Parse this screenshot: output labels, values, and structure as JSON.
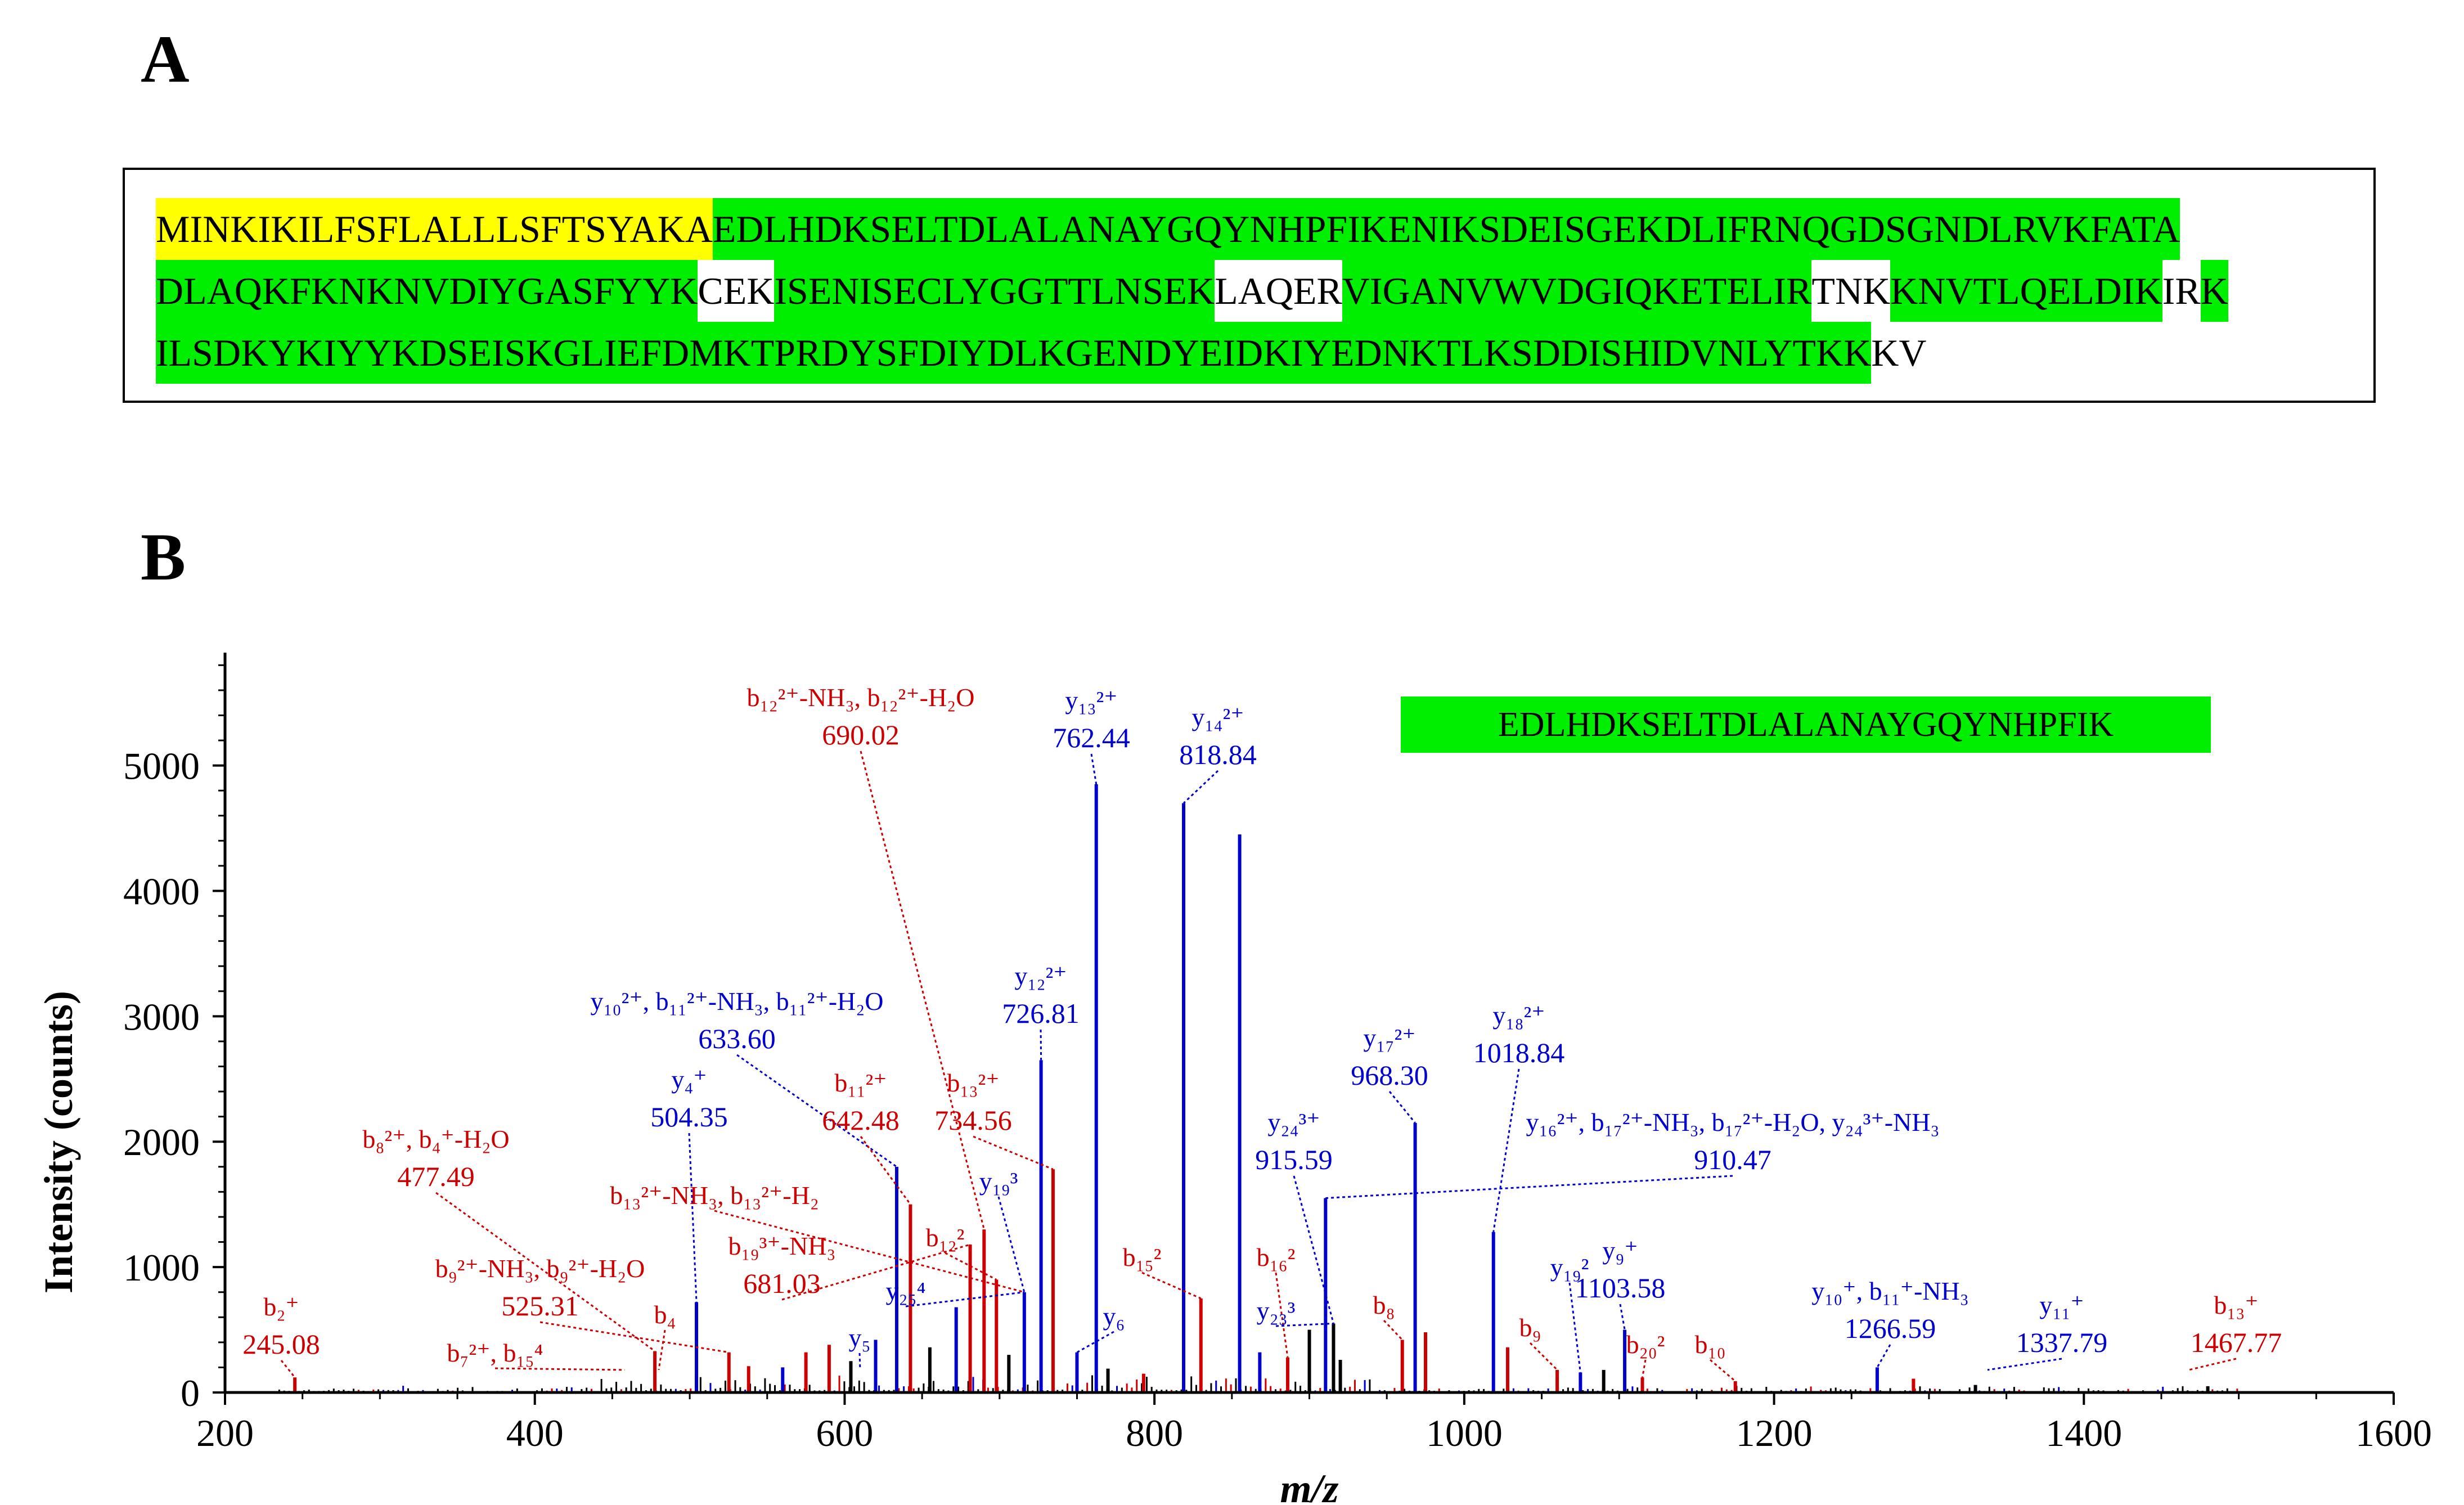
{
  "panels": {
    "a": "A",
    "b": "B"
  },
  "sequence": {
    "lines": [
      [
        {
          "text": "MINKIKILFSFLALLLSFTSYAKA",
          "kind": "sig"
        },
        {
          "text": "EDLHDKSELTDLALANAYGQYNHPFIKENIKSDEISGEKDLIFRNQGDSGNDLRVKFATA",
          "kind": "cov"
        }
      ],
      [
        {
          "text": "DLAQKFKNKNVDIYGASFYYK",
          "kind": "cov"
        },
        {
          "text": "CEK",
          "kind": "plain"
        },
        {
          "text": "ISENISECLYGGTTLNSEK",
          "kind": "cov"
        },
        {
          "text": "LAQER",
          "kind": "plain"
        },
        {
          "text": "VIGANVWVDGIQKETELIR",
          "kind": "cov"
        },
        {
          "text": "TNK",
          "kind": "plain"
        },
        {
          "text": "KNVTLQELDIK",
          "kind": "cov"
        },
        {
          "text": "IR",
          "kind": "plain"
        },
        {
          "text": "K",
          "kind": "cov"
        }
      ],
      [
        {
          "text": "ILSDKYKIYYKDSEISKGLIEFDMKTPRDYSFDIYDLKGENDYEIDKIYEDNKTLKSDDISHIDVNLYTKK",
          "kind": "cov"
        },
        {
          "text": "KV",
          "kind": "plain"
        }
      ]
    ]
  },
  "chart_data": {
    "type": "bar",
    "title": "",
    "peptide": "EDLHDKSELTDLALANAYGQYNHPFIK",
    "xlabel": "m/z",
    "ylabel": "Intensity (counts)",
    "xlim": [
      200,
      1600
    ],
    "ylim": [
      0,
      5900
    ],
    "xticks": [
      200,
      400,
      600,
      800,
      1000,
      1200,
      1400,
      1600
    ],
    "yticks": [
      0,
      1000,
      2000,
      3000,
      4000,
      5000
    ],
    "colors": {
      "b": "#cc0000",
      "y": "#0000cc",
      "other": "#000000",
      "accent": "#00ee00",
      "signal": "#ffff00"
    },
    "peaks": [
      {
        "mz": 245.08,
        "i": 120,
        "ion": "b"
      },
      {
        "mz": 477.49,
        "i": 330,
        "ion": "b"
      },
      {
        "mz": 504.35,
        "i": 720,
        "ion": "y"
      },
      {
        "mz": 525.31,
        "i": 320,
        "ion": "b"
      },
      {
        "mz": 633.6,
        "i": 1800,
        "ion": "y"
      },
      {
        "mz": 642.48,
        "i": 1500,
        "ion": "b"
      },
      {
        "mz": 681.03,
        "i": 1180,
        "ion": "b"
      },
      {
        "mz": 690.02,
        "i": 1300,
        "ion": "b"
      },
      {
        "mz": 698,
        "i": 900,
        "ion": "b"
      },
      {
        "mz": 716,
        "i": 800,
        "ion": "y"
      },
      {
        "mz": 726.81,
        "i": 2650,
        "ion": "y"
      },
      {
        "mz": 734.56,
        "i": 1780,
        "ion": "b"
      },
      {
        "mz": 762.44,
        "i": 4850,
        "ion": "y"
      },
      {
        "mz": 818.84,
        "i": 4700,
        "ion": "y"
      },
      {
        "mz": 830,
        "i": 750,
        "ion": "b"
      },
      {
        "mz": 855,
        "i": 4450,
        "ion": "y"
      },
      {
        "mz": 910.47,
        "i": 1550,
        "ion": "y"
      },
      {
        "mz": 915.59,
        "i": 550,
        "ion": "other"
      },
      {
        "mz": 968.3,
        "i": 2150,
        "ion": "y"
      },
      {
        "mz": 1018.84,
        "i": 1280,
        "ion": "y"
      },
      {
        "mz": 1103.58,
        "i": 500,
        "ion": "y"
      },
      {
        "mz": 1266.59,
        "i": 200,
        "ion": "y"
      },
      {
        "mz": 960,
        "i": 420,
        "ion": "b"
      },
      {
        "mz": 975,
        "i": 480,
        "ion": "b"
      },
      {
        "mz": 1075,
        "i": 160,
        "ion": "y"
      },
      {
        "mz": 1060,
        "i": 180,
        "ion": "b"
      },
      {
        "mz": 1115,
        "i": 120,
        "ion": "b"
      },
      {
        "mz": 1175,
        "i": 90,
        "ion": "b"
      },
      {
        "mz": 868,
        "i": 320,
        "ion": "y"
      },
      {
        "mz": 886,
        "i": 280,
        "ion": "b"
      },
      {
        "mz": 900,
        "i": 500,
        "ion": "other"
      },
      {
        "mz": 620,
        "i": 420,
        "ion": "y"
      },
      {
        "mz": 672,
        "i": 680,
        "ion": "y"
      },
      {
        "mz": 750,
        "i": 320,
        "ion": "y"
      },
      {
        "mz": 538,
        "i": 210,
        "ion": "b"
      },
      {
        "mz": 560,
        "i": 200,
        "ion": "y"
      },
      {
        "mz": 575,
        "i": 320,
        "ion": "b"
      },
      {
        "mz": 590,
        "i": 380,
        "ion": "b"
      },
      {
        "mz": 604,
        "i": 250,
        "ion": "other"
      },
      {
        "mz": 655,
        "i": 360,
        "ion": "other"
      },
      {
        "mz": 706,
        "i": 300,
        "ion": "other"
      },
      {
        "mz": 770,
        "i": 190,
        "ion": "other"
      },
      {
        "mz": 793,
        "i": 150,
        "ion": "b"
      },
      {
        "mz": 920,
        "i": 260,
        "ion": "other"
      },
      {
        "mz": 1028,
        "i": 360,
        "ion": "b"
      },
      {
        "mz": 1090,
        "i": 180,
        "ion": "other"
      },
      {
        "mz": 1290,
        "i": 110,
        "ion": "b"
      },
      {
        "mz": 1330,
        "i": 60,
        "ion": "other"
      },
      {
        "mz": 1480,
        "i": 50,
        "ion": "other"
      }
    ],
    "annotations": [
      {
        "label": "b₂⁺",
        "value": "245.08",
        "ion": "b",
        "mz": 245.08
      },
      {
        "label": "b₈²⁺, b₄⁺-H₂O",
        "value": "477.49",
        "ion": "b",
        "mz": 477.49
      },
      {
        "label": "b₉²⁺-NH₃, b₉²⁺-H₂O",
        "value": "525.31",
        "ion": "b",
        "mz": 525.31
      },
      {
        "label": "b₇²⁺, b₁₅⁴",
        "value": "",
        "ion": "b",
        "mz": 458
      },
      {
        "label": "b₄",
        "value": "",
        "ion": "b",
        "mz": 480
      },
      {
        "label": "y₄⁺",
        "value": "504.35",
        "ion": "y",
        "mz": 504.35
      },
      {
        "label": "b₁₃²⁺-NH₃, b₁₃²⁺-H₂",
        "value": "",
        "ion": "b",
        "mz": 716
      },
      {
        "label": "y₁₀²⁺, b₁₁²⁺-NH₃, b₁₁²⁺-H₂O",
        "value": "633.60",
        "ion": "y",
        "mz": 633.6
      },
      {
        "label": "b₁₉³⁺-NH₃",
        "value": "681.03",
        "ion": "b",
        "mz": 681.03
      },
      {
        "label": "b₁₁²⁺",
        "value": "642.48",
        "ion": "b",
        "mz": 642.48
      },
      {
        "label": "b₁₃²⁺",
        "value": "734.56",
        "ion": "b",
        "mz": 734.56
      },
      {
        "label": "b₁₂²⁺-NH₃, b₁₂²⁺-H₂O",
        "value": "690.02",
        "ion": "b",
        "mz": 690.02
      },
      {
        "label": "y₁₂²⁺",
        "value": "726.81",
        "ion": "y",
        "mz": 726.81
      },
      {
        "label": "y₁₃²⁺",
        "value": "762.44",
        "ion": "y",
        "mz": 762.44
      },
      {
        "label": "y₁₄²⁺",
        "value": "818.84",
        "ion": "y",
        "mz": 818.84
      },
      {
        "label": "y₁₉³",
        "value": "",
        "ion": "y",
        "mz": 716
      },
      {
        "label": "b₁₂²",
        "value": "",
        "ion": "b",
        "mz": 698
      },
      {
        "label": "y₂₅⁴",
        "value": "",
        "ion": "y",
        "mz": 716
      },
      {
        "label": "y₅",
        "value": "",
        "ion": "y",
        "mz": 610
      },
      {
        "label": "y₆",
        "value": "",
        "ion": "y",
        "mz": 750
      },
      {
        "label": "b₁₅²",
        "value": "",
        "ion": "b",
        "mz": 830
      },
      {
        "label": "b₁₆²",
        "value": "",
        "ion": "b",
        "mz": 886
      },
      {
        "label": "y₂₃³",
        "value": "",
        "ion": "y",
        "mz": 915.59
      },
      {
        "label": "y₂₄³⁺",
        "value": "915.59",
        "ion": "y",
        "mz": 915.59
      },
      {
        "label": "y₁₇²⁺",
        "value": "968.30",
        "ion": "y",
        "mz": 968.3
      },
      {
        "label": "y₁₈²⁺",
        "value": "1018.84",
        "ion": "y",
        "mz": 1018.84
      },
      {
        "label": "y₁₆²⁺, b₁₇²⁺-NH₃, b₁₇²⁺-H₂O, y₂₄³⁺-NH₃",
        "value": "910.47",
        "ion": "y",
        "mz": 910.47
      },
      {
        "label": "b₈",
        "value": "",
        "ion": "b",
        "mz": 960
      },
      {
        "label": "b₉",
        "value": "",
        "ion": "b",
        "mz": 1060
      },
      {
        "label": "y₁₉²",
        "value": "",
        "ion": "y",
        "mz": 1075
      },
      {
        "label": "y₉⁺",
        "value": "1103.58",
        "ion": "y",
        "mz": 1103.58
      },
      {
        "label": "b₂₀²",
        "value": "",
        "ion": "b",
        "mz": 1115
      },
      {
        "label": "b₁₀",
        "value": "",
        "ion": "b",
        "mz": 1175
      },
      {
        "label": "y₁₀⁺, b₁₁⁺-NH₃",
        "value": "1266.59",
        "ion": "y",
        "mz": 1266.59
      },
      {
        "label": "y₁₁⁺",
        "value": "1337.79",
        "ion": "y",
        "mz": 1337.79
      },
      {
        "label": "b₁₃⁺",
        "value": "1467.77",
        "ion": "b",
        "mz": 1467.77
      }
    ]
  }
}
